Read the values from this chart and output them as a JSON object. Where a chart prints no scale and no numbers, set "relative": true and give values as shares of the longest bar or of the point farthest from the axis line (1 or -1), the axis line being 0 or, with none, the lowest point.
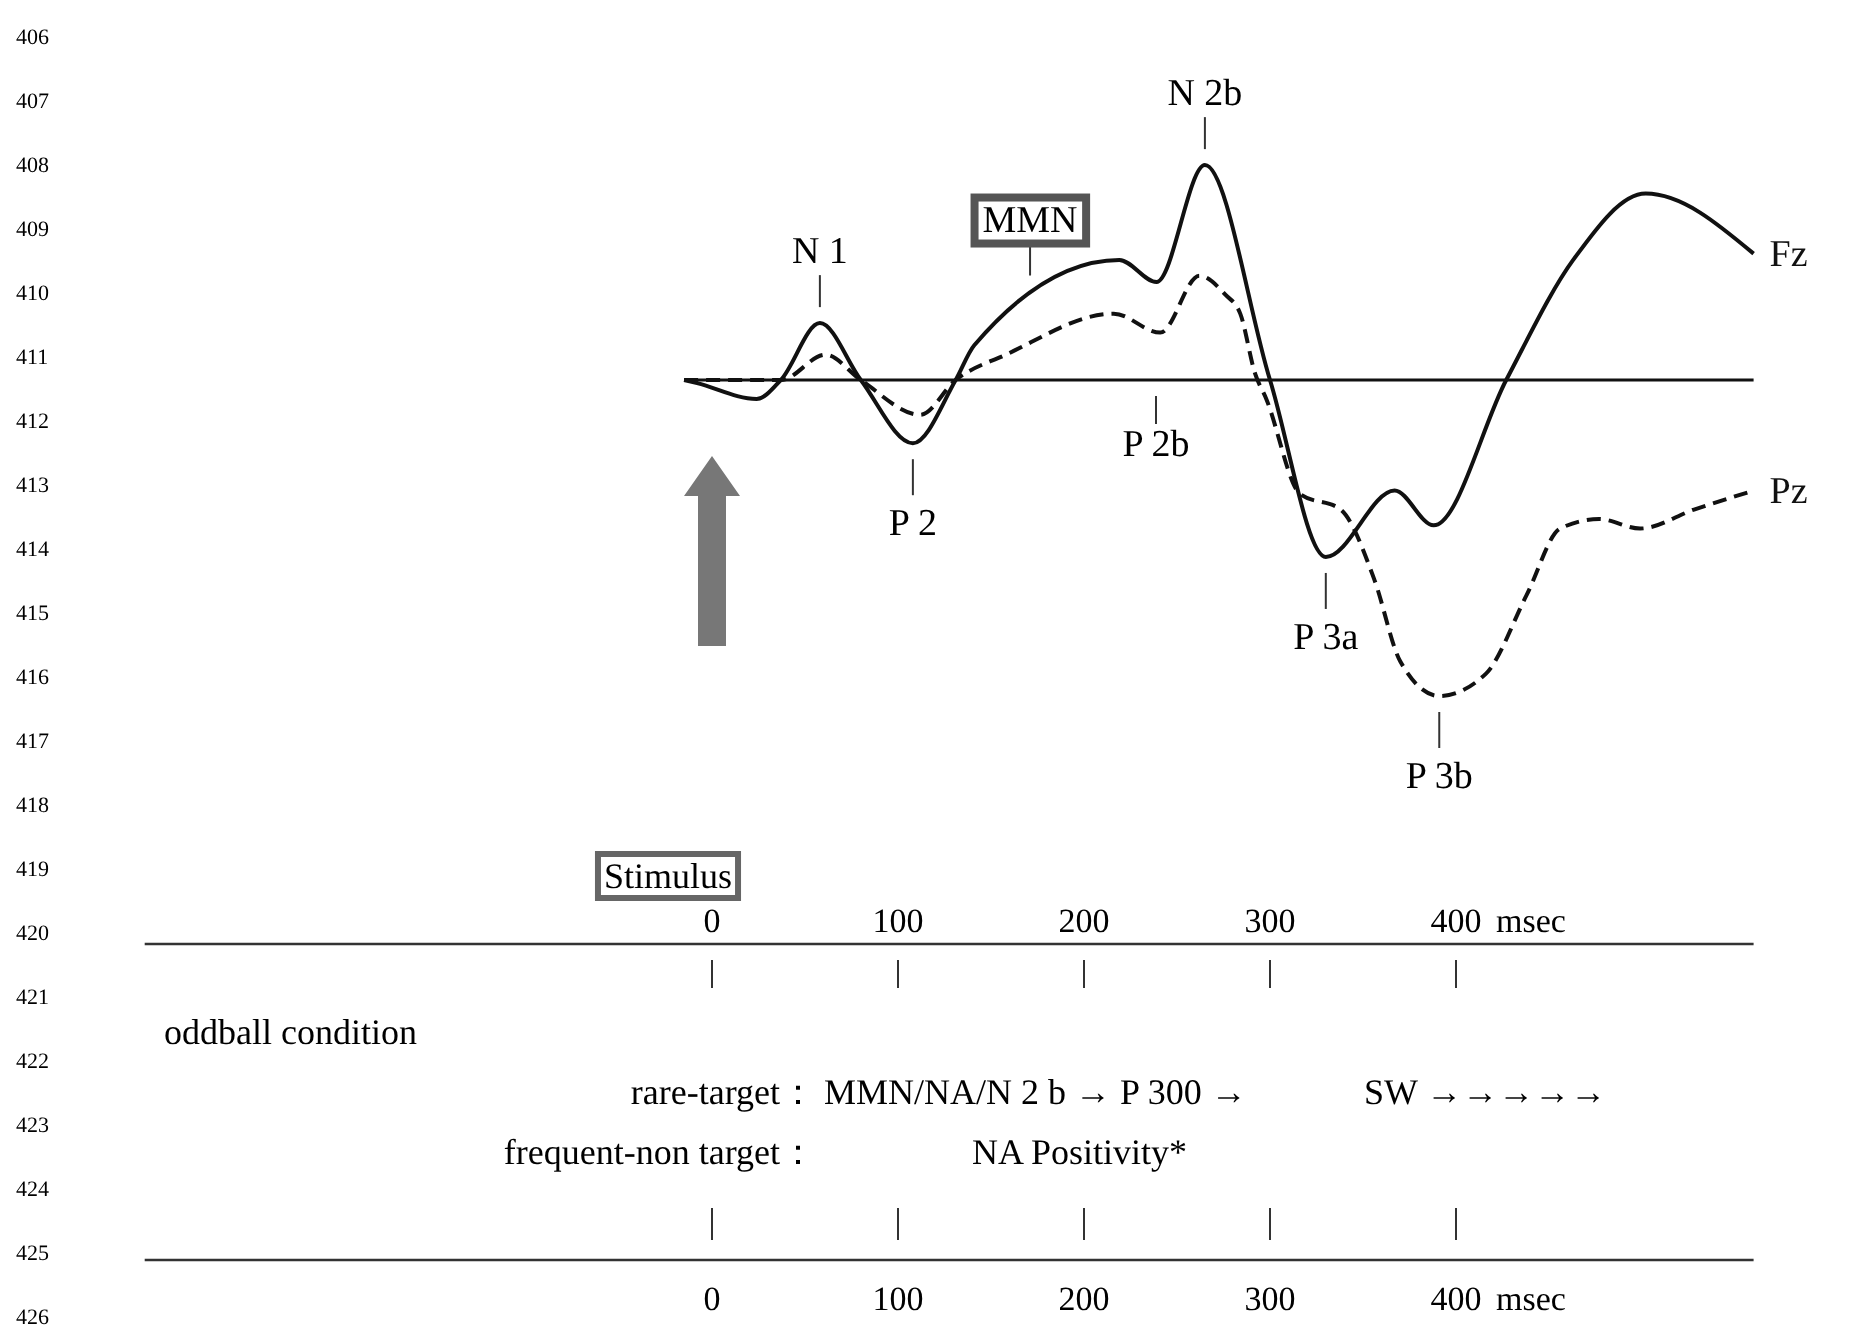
{
  "chart_data": {
    "type": "line",
    "relative": true,
    "xlabel": "msec",
    "xlim": [
      -305,
      560
    ],
    "xticks": [
      0,
      100,
      200,
      300,
      400
    ],
    "x2label": "msec",
    "x2lim": [
      0,
      400
    ],
    "x2ticks": [
      0,
      100,
      200,
      300,
      400
    ],
    "ref_lines": [
      {
        "axis": "y",
        "value": 0,
        "color": "#111111"
      }
    ],
    "series": [
      {
        "name": "Fz",
        "color": "#111111",
        "line_style": "solid",
        "x": [
          -15,
          -8,
          24,
          37,
          58,
          80,
          108,
          131,
          141,
          219,
          239,
          265,
          300,
          330,
          367,
          388,
          427,
          463,
          502,
          560
        ],
        "values": [
          0,
          -0.01,
          -0.06,
          0,
          0.18,
          0,
          -0.2,
          0,
          0.11,
          0.38,
          0.31,
          0.68,
          0,
          -0.56,
          -0.35,
          -0.46,
          0,
          0.38,
          0.59,
          0.4
        ]
      },
      {
        "name": "Pz",
        "color": "#111111",
        "line_style": "dashed",
        "x": [
          -15,
          37,
          61,
          80,
          112,
          131,
          158,
          216,
          241,
          262,
          276,
          284,
          292,
          298,
          316,
          338,
          356,
          370,
          391,
          416,
          438,
          456,
          477,
          499,
          528,
          560
        ],
        "values": [
          0,
          0,
          0.08,
          0,
          -0.11,
          0,
          0.08,
          0.21,
          0.15,
          0.33,
          0.27,
          0.21,
          0.02,
          -0.06,
          -0.36,
          -0.41,
          -0.63,
          -0.89,
          -1,
          -0.93,
          -0.68,
          -0.47,
          -0.44,
          -0.47,
          -0.41,
          -0.35
        ]
      }
    ],
    "annotations": [
      {
        "text": "N 1",
        "x": 58,
        "y": 0.18
      },
      {
        "text": "P 2",
        "x": 108,
        "y": -0.2
      },
      {
        "text": "MMN",
        "x": 171,
        "y": 0.28
      },
      {
        "text": "N 2b",
        "x": 265,
        "y": 0.68
      },
      {
        "text": "P 3a",
        "x": 330,
        "y": -0.56
      },
      {
        "text": "P 3b",
        "x": 391,
        "y": -1
      },
      "P 2b",
      "Stimulus",
      "oddball condition",
      "rare-target：",
      "MMN/NA/N 2 b → P 300 →",
      "SW →→→→→",
      "frequent-non target：",
      "NA Positivity*",
      "406",
      "407",
      "408",
      "409",
      "410",
      "411",
      "412",
      "413",
      "414",
      "415",
      "416",
      "417",
      "418",
      "419",
      "420",
      "421",
      "422",
      "423",
      "424",
      "425",
      "426"
    ]
  }
}
